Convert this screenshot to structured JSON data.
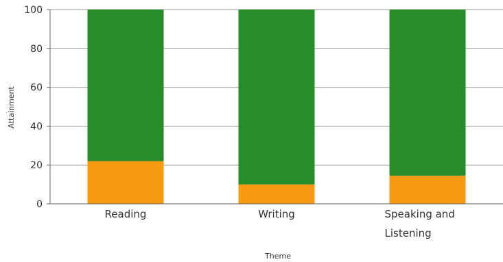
{
  "chart_data": {
    "type": "bar",
    "stacked": true,
    "categories": [
      "Reading",
      "Writing",
      "Speaking and Listening"
    ],
    "series": [
      {
        "color": "#f59a12",
        "values": [
          22,
          10,
          14.5
        ]
      },
      {
        "color": "#288c2b",
        "values": [
          78,
          90,
          85.5
        ]
      }
    ],
    "xlabel": "Theme",
    "ylabel": "Attainment",
    "ylim": [
      0,
      100
    ],
    "yticks": [
      0,
      20,
      40,
      60,
      80,
      100
    ],
    "grid": true,
    "legend": "none"
  }
}
